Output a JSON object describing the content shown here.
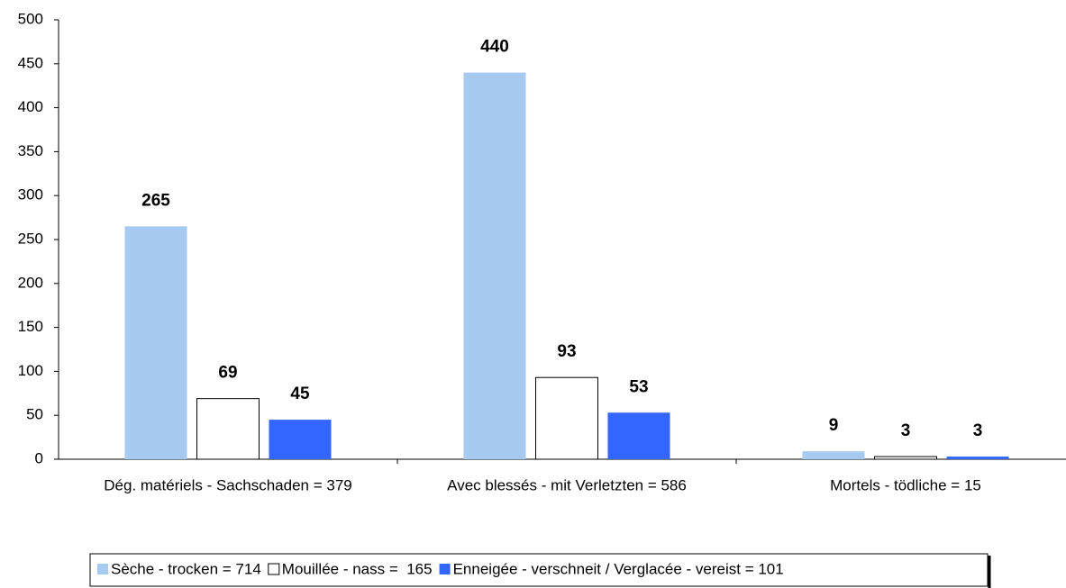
{
  "chart_data": {
    "type": "bar",
    "categories": [
      "Dég. matériels - Sachschaden = 379",
      "Avec blessés - mit Verletzten = 586",
      "Mortels - tödliche = 15"
    ],
    "series": [
      {
        "name": "Sèche - trocken = 714",
        "color": "#a6caf0",
        "values": [
          265,
          440,
          9
        ]
      },
      {
        "name": "Mouillée - nass =  165",
        "color": "#ffffff",
        "values": [
          69,
          93,
          3
        ]
      },
      {
        "name": "Enneigée - verschneit / Verglacée - vereist = 101",
        "color": "#3366ff",
        "values": [
          45,
          53,
          3
        ]
      }
    ],
    "ylim": [
      0,
      500
    ],
    "yticks": [
      0,
      50,
      100,
      150,
      200,
      250,
      300,
      350,
      400,
      450,
      500
    ],
    "legend": "bottom"
  }
}
